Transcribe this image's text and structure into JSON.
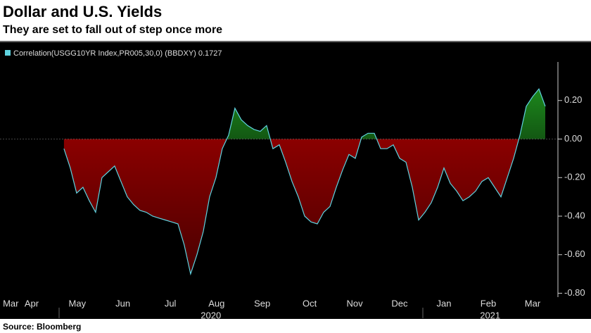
{
  "chart_data": {
    "type": "area",
    "title": "Dollar and U.S. Yields",
    "subtitle": "They are set to fall out of step once more",
    "source": "Source: Bloomberg",
    "series": [
      {
        "name": "Correlation(USGG10YR Index,PR005,30,0) (BBDXY) 0.1727",
        "color": "#5fd3e0",
        "positive_color": "#22a022",
        "negative_color": "#8b0000",
        "values": [
          -0.05,
          -0.15,
          -0.28,
          -0.25,
          -0.32,
          -0.38,
          -0.2,
          -0.17,
          -0.14,
          -0.22,
          -0.3,
          -0.34,
          -0.37,
          -0.38,
          -0.4,
          -0.41,
          -0.42,
          -0.43,
          -0.44,
          -0.55,
          -0.7,
          -0.6,
          -0.48,
          -0.3,
          -0.2,
          -0.05,
          0.02,
          0.16,
          0.1,
          0.07,
          0.05,
          0.04,
          0.07,
          -0.05,
          -0.03,
          -0.12,
          -0.22,
          -0.3,
          -0.4,
          -0.43,
          -0.44,
          -0.38,
          -0.35,
          -0.25,
          -0.16,
          -0.08,
          -0.1,
          0.01,
          0.03,
          0.03,
          -0.05,
          -0.05,
          -0.03,
          -0.1,
          -0.12,
          -0.25,
          -0.42,
          -0.38,
          -0.33,
          -0.25,
          -0.15,
          -0.23,
          -0.27,
          -0.32,
          -0.3,
          -0.27,
          -0.22,
          -0.2,
          -0.25,
          -0.3,
          -0.2,
          -0.1,
          0.02,
          0.17,
          0.22,
          0.26,
          0.17
        ]
      }
    ],
    "xlim": [
      -10.1,
      78
    ],
    "xticks": [
      {
        "value": -8.4,
        "label": "Mar"
      },
      {
        "value": -5.1,
        "label": "Apr"
      },
      {
        "value": 2.1,
        "label": "May"
      },
      {
        "value": 9.3,
        "label": "Jun"
      },
      {
        "value": 16.8,
        "label": "Jul"
      },
      {
        "value": 24.1,
        "label": "Aug"
      },
      {
        "value": 31.3,
        "label": "Sep"
      },
      {
        "value": 38.8,
        "label": "Oct"
      },
      {
        "value": 45.9,
        "label": "Nov"
      },
      {
        "value": 53,
        "label": "Dec"
      },
      {
        "value": 60,
        "label": "Jan"
      },
      {
        "value": 67,
        "label": "Feb"
      },
      {
        "value": 74,
        "label": "Mar"
      }
    ],
    "year_labels": [
      {
        "value": 23.2,
        "label": "2020"
      },
      {
        "value": 67.3,
        "label": "2021"
      }
    ],
    "ylim": [
      -0.82,
      0.4
    ],
    "yticks": [
      {
        "value": 0.2,
        "label": "0.20"
      },
      {
        "value": 0,
        "label": "0.00"
      },
      {
        "value": -0.2,
        "label": "-0.20"
      },
      {
        "value": -0.4,
        "label": "-0.40"
      },
      {
        "value": -0.6,
        "label": "-0.60"
      },
      {
        "value": -0.8,
        "label": "-0.80"
      }
    ]
  }
}
